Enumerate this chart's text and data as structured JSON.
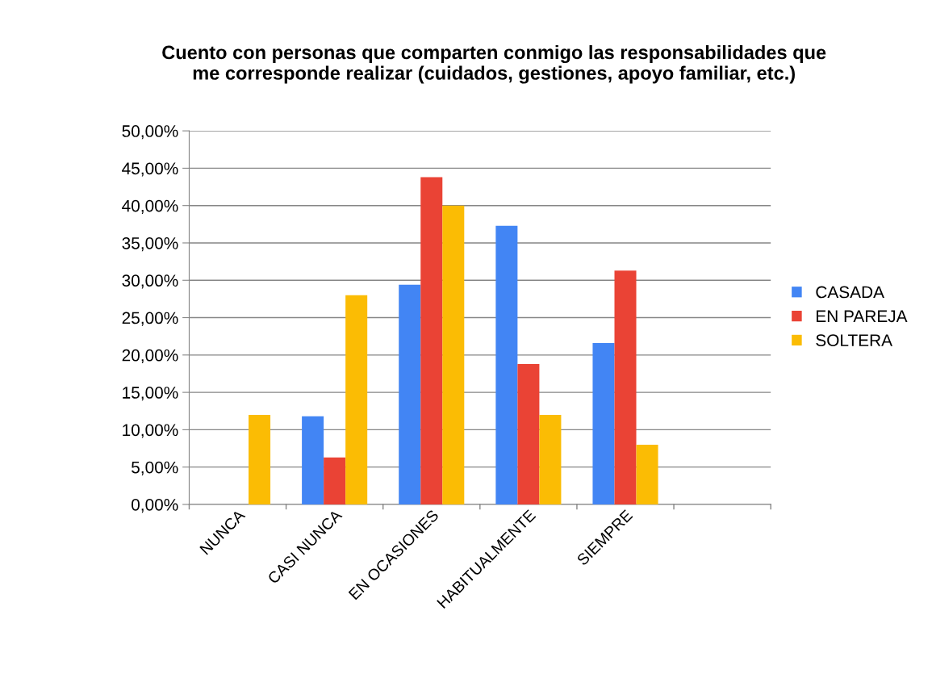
{
  "chart_data": {
    "type": "bar",
    "title": "Cuento con personas que comparten conmigo las responsabilidades que\nme corresponde realizar (cuidados, gestiones, apoyo familiar, etc.)",
    "categories": [
      "NUNCA",
      "CASI NUNCA",
      "EN OCASIONES",
      "HABITUALMENTE",
      "SIEMPRE",
      null
    ],
    "series": [
      {
        "name": "CASADA",
        "color": "#4285f4",
        "values": [
          0,
          11.8,
          29.4,
          37.3,
          21.6,
          null
        ]
      },
      {
        "name": "EN PAREJA",
        "color": "#ea4335",
        "values": [
          0,
          6.3,
          43.8,
          18.8,
          31.3,
          null
        ]
      },
      {
        "name": "SOLTERA",
        "color": "#fbbc04",
        "values": [
          12,
          28,
          40,
          12,
          8,
          null
        ]
      }
    ],
    "ylim": [
      0,
      50
    ],
    "yticks": [
      {
        "value": 0,
        "label": "0,00%"
      },
      {
        "value": 5,
        "label": "5,00%"
      },
      {
        "value": 10,
        "label": "10,00%"
      },
      {
        "value": 15,
        "label": "15,00%"
      },
      {
        "value": 20,
        "label": "20,00%"
      },
      {
        "value": 25,
        "label": "25,00%"
      },
      {
        "value": 30,
        "label": "30,00%"
      },
      {
        "value": 35,
        "label": "35,00%"
      },
      {
        "value": 40,
        "label": "40,00%"
      },
      {
        "value": 45,
        "label": "45,00%"
      },
      {
        "value": 50,
        "label": "50,00%"
      }
    ],
    "grid": "y",
    "legend": "right"
  }
}
